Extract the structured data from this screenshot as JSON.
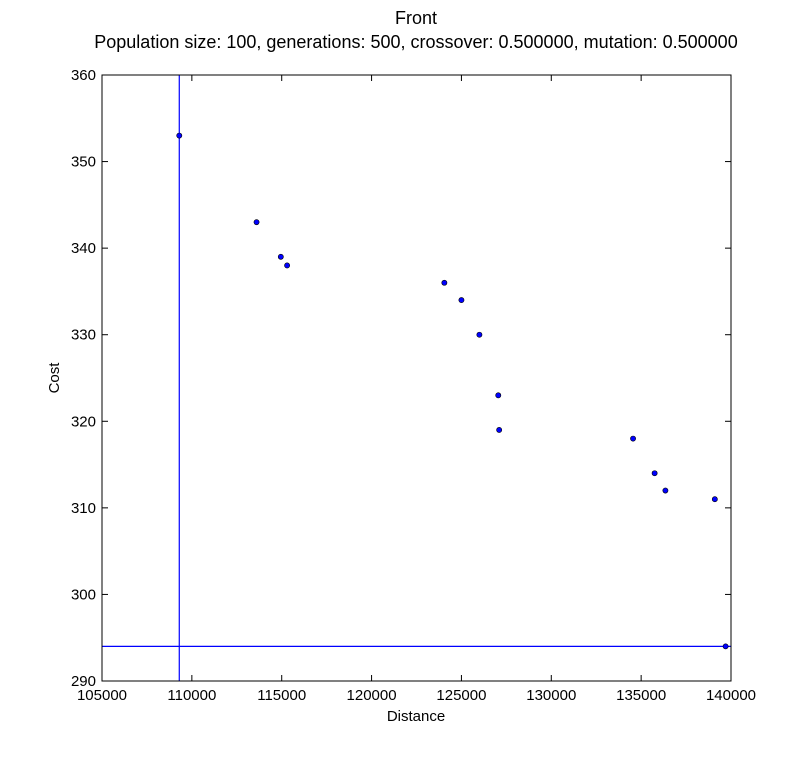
{
  "chart_data": {
    "type": "scatter",
    "title": "Front",
    "subtitle": "Population size: 100, generations: 500, crossover: 0.500000, mutation: 0.500000",
    "xlabel": "Distance",
    "ylabel": "Cost",
    "xlim": [
      105000,
      140000
    ],
    "ylim": [
      290,
      360
    ],
    "x_ticks": [
      "105000",
      "110000",
      "115000",
      "120000",
      "125000",
      "130000",
      "135000",
      "140000"
    ],
    "y_ticks": [
      "290",
      "300",
      "310",
      "320",
      "330",
      "340",
      "350",
      "360"
    ],
    "grid": false,
    "point_color": "#0000ff",
    "reference_lines": [
      {
        "orientation": "vertical",
        "x": 109300
      },
      {
        "orientation": "horizontal",
        "y": 294
      }
    ],
    "series": [
      {
        "points": [
          {
            "x": 109300,
            "y": 353
          },
          {
            "x": 113600,
            "y": 343
          },
          {
            "x": 114950,
            "y": 339
          },
          {
            "x": 115300,
            "y": 338
          },
          {
            "x": 124050,
            "y": 336
          },
          {
            "x": 125000,
            "y": 334
          },
          {
            "x": 126000,
            "y": 330
          },
          {
            "x": 127050,
            "y": 323
          },
          {
            "x": 127100,
            "y": 319
          },
          {
            "x": 134550,
            "y": 318
          },
          {
            "x": 135750,
            "y": 314
          },
          {
            "x": 136350,
            "y": 312
          },
          {
            "x": 139100,
            "y": 311
          },
          {
            "x": 139700,
            "y": 294
          }
        ]
      }
    ]
  }
}
